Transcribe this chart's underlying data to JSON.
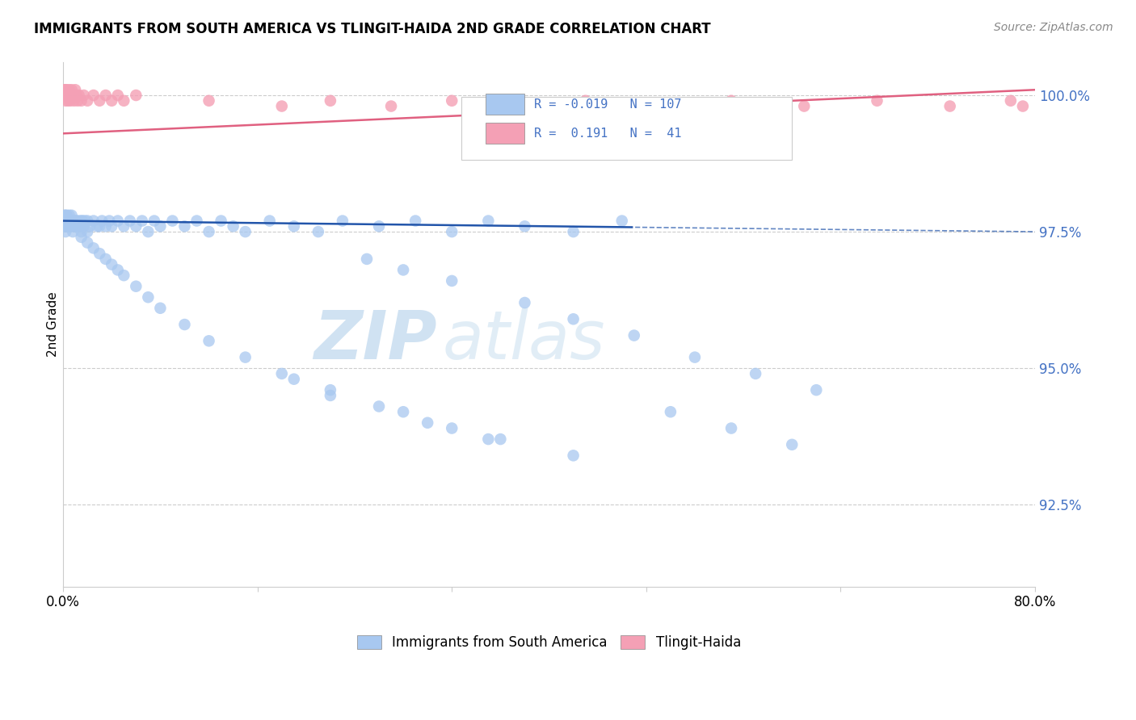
{
  "title": "IMMIGRANTS FROM SOUTH AMERICA VS TLINGIT-HAIDA 2ND GRADE CORRELATION CHART",
  "source": "Source: ZipAtlas.com",
  "ylabel": "2nd Grade",
  "xlim": [
    0.0,
    0.8
  ],
  "ylim": [
    0.91,
    1.006
  ],
  "ytick_vals": [
    0.925,
    0.95,
    0.975,
    1.0
  ],
  "ytick_labels": [
    "92.5%",
    "95.0%",
    "97.5%",
    "100.0%"
  ],
  "xtick_positions": [
    0.0,
    0.16,
    0.32,
    0.48,
    0.64,
    0.8
  ],
  "xtick_labels": [
    "0.0%",
    "",
    "",
    "",
    "",
    "80.0%"
  ],
  "blue_R": -0.019,
  "blue_N": 107,
  "pink_R": 0.191,
  "pink_N": 41,
  "blue_color": "#a8c8f0",
  "blue_line_color": "#2255aa",
  "pink_color": "#f4a0b5",
  "pink_line_color": "#e06080",
  "legend_blue_label": "Immigrants from South America",
  "legend_pink_label": "Tlingit-Haida",
  "watermark_zip": "ZIP",
  "watermark_atlas": "atlas",
  "blue_scatter_x": [
    0.001,
    0.001,
    0.001,
    0.002,
    0.002,
    0.002,
    0.002,
    0.003,
    0.003,
    0.003,
    0.004,
    0.004,
    0.005,
    0.005,
    0.005,
    0.006,
    0.006,
    0.007,
    0.007,
    0.008,
    0.008,
    0.009,
    0.009,
    0.01,
    0.01,
    0.011,
    0.012,
    0.013,
    0.014,
    0.015,
    0.015,
    0.016,
    0.017,
    0.018,
    0.02,
    0.02,
    0.022,
    0.025,
    0.028,
    0.03,
    0.032,
    0.035,
    0.038,
    0.04,
    0.045,
    0.05,
    0.055,
    0.06,
    0.065,
    0.07,
    0.075,
    0.08,
    0.09,
    0.1,
    0.11,
    0.12,
    0.13,
    0.14,
    0.15,
    0.17,
    0.19,
    0.21,
    0.23,
    0.26,
    0.29,
    0.32,
    0.35,
    0.38,
    0.42,
    0.46,
    0.015,
    0.02,
    0.025,
    0.03,
    0.035,
    0.04,
    0.045,
    0.05,
    0.06,
    0.07,
    0.08,
    0.1,
    0.12,
    0.15,
    0.18,
    0.22,
    0.26,
    0.3,
    0.35,
    0.25,
    0.28,
    0.32,
    0.38,
    0.42,
    0.47,
    0.52,
    0.57,
    0.62,
    0.5,
    0.55,
    0.6,
    0.19,
    0.22,
    0.28,
    0.32,
    0.36,
    0.42
  ],
  "blue_scatter_y": [
    0.978,
    0.977,
    0.976,
    0.978,
    0.977,
    0.976,
    0.975,
    0.978,
    0.977,
    0.976,
    0.977,
    0.976,
    0.978,
    0.977,
    0.976,
    0.977,
    0.976,
    0.978,
    0.976,
    0.977,
    0.975,
    0.977,
    0.976,
    0.977,
    0.976,
    0.977,
    0.976,
    0.977,
    0.976,
    0.977,
    0.975,
    0.977,
    0.976,
    0.977,
    0.977,
    0.975,
    0.976,
    0.977,
    0.976,
    0.976,
    0.977,
    0.976,
    0.977,
    0.976,
    0.977,
    0.976,
    0.977,
    0.976,
    0.977,
    0.975,
    0.977,
    0.976,
    0.977,
    0.976,
    0.977,
    0.975,
    0.977,
    0.976,
    0.975,
    0.977,
    0.976,
    0.975,
    0.977,
    0.976,
    0.977,
    0.975,
    0.977,
    0.976,
    0.975,
    0.977,
    0.974,
    0.973,
    0.972,
    0.971,
    0.97,
    0.969,
    0.968,
    0.967,
    0.965,
    0.963,
    0.961,
    0.958,
    0.955,
    0.952,
    0.949,
    0.946,
    0.943,
    0.94,
    0.937,
    0.97,
    0.968,
    0.966,
    0.962,
    0.959,
    0.956,
    0.952,
    0.949,
    0.946,
    0.942,
    0.939,
    0.936,
    0.948,
    0.945,
    0.942,
    0.939,
    0.937,
    0.934
  ],
  "pink_scatter_x": [
    0.001,
    0.001,
    0.002,
    0.002,
    0.003,
    0.003,
    0.004,
    0.005,
    0.005,
    0.006,
    0.007,
    0.008,
    0.009,
    0.01,
    0.011,
    0.012,
    0.013,
    0.015,
    0.017,
    0.02,
    0.025,
    0.03,
    0.035,
    0.04,
    0.045,
    0.05,
    0.06,
    0.12,
    0.18,
    0.22,
    0.27,
    0.32,
    0.37,
    0.43,
    0.49,
    0.55,
    0.61,
    0.67,
    0.73,
    0.78,
    0.79
  ],
  "pink_scatter_y": [
    1.001,
    1.0,
    1.001,
    0.999,
    1.001,
    1.0,
    0.999,
    1.001,
    1.0,
    0.999,
    1.001,
    1.0,
    0.999,
    1.001,
    1.0,
    0.999,
    1.0,
    0.999,
    1.0,
    0.999,
    1.0,
    0.999,
    1.0,
    0.999,
    1.0,
    0.999,
    1.0,
    0.999,
    0.998,
    0.999,
    0.998,
    0.999,
    0.998,
    0.999,
    0.998,
    0.999,
    0.998,
    0.999,
    0.998,
    0.999,
    0.998
  ]
}
